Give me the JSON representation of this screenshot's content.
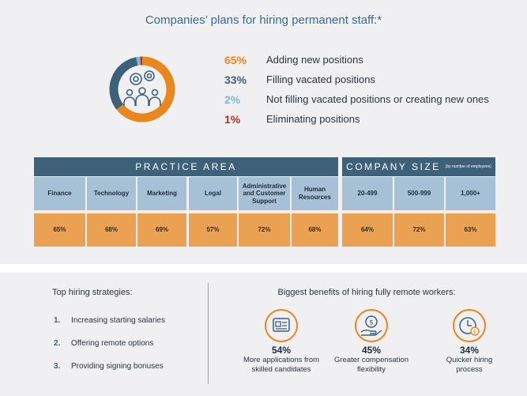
{
  "headline": "Companies’ plans for hiring permanent staff:*",
  "colors": {
    "orange": "#e8871e",
    "navy": "#3d6178",
    "light_blue": "#7fb5d9",
    "red": "#b0312a",
    "cat_bg": "#a6c1d6",
    "val_bg": "#eba152"
  },
  "chart_data": [
    {
      "type": "pie",
      "categories": [
        "Adding new positions",
        "Filling vacated positions",
        "Not filling vacated positions or creating new ones",
        "Eliminating positions"
      ],
      "values": [
        65,
        33,
        2,
        1
      ],
      "labels": [
        "65%",
        "33%",
        "2%",
        "1%"
      ],
      "colors": [
        "#e8871e",
        "#3d6178",
        "#7fb5d9",
        "#b0312a"
      ]
    },
    {
      "type": "table",
      "groups": [
        {
          "title": "PRACTICE AREA",
          "subtitle": "",
          "span": 6
        },
        {
          "title": "COMPANY SIZE",
          "subtitle": "(by number of employees)",
          "span": 3
        }
      ],
      "categories": [
        "Finance",
        "Technology",
        "Marketing",
        "Legal",
        "Administrative and Customer Support",
        "Human Resources",
        "20-499",
        "500-999",
        "1,000+"
      ],
      "values": [
        65,
        68,
        69,
        57,
        72,
        68,
        64,
        72,
        63
      ],
      "labels": [
        "65%",
        "68%",
        "69%",
        "57%",
        "72%",
        "68%",
        "64%",
        "72%",
        "63%"
      ]
    }
  ],
  "strategies": {
    "title": "Top hiring strategies:",
    "items": [
      {
        "num": "1.",
        "text": "Increasing starting salaries"
      },
      {
        "num": "2.",
        "text": "Offering remote options"
      },
      {
        "num": "3.",
        "text": "Providing signing bonuses"
      }
    ]
  },
  "benefits": {
    "title": "Biggest benefits of hiring fully remote workers:",
    "items": [
      {
        "pct": "54%",
        "line1": "More applications from",
        "line2": "skilled candidates",
        "icon": "applications-icon"
      },
      {
        "pct": "45%",
        "line1": "Greater compensation",
        "line2": "flexibility",
        "icon": "money-hand-icon"
      },
      {
        "pct": "34%",
        "line1": "Quicker hiring",
        "line2": "process",
        "icon": "clock-money-icon"
      }
    ]
  }
}
